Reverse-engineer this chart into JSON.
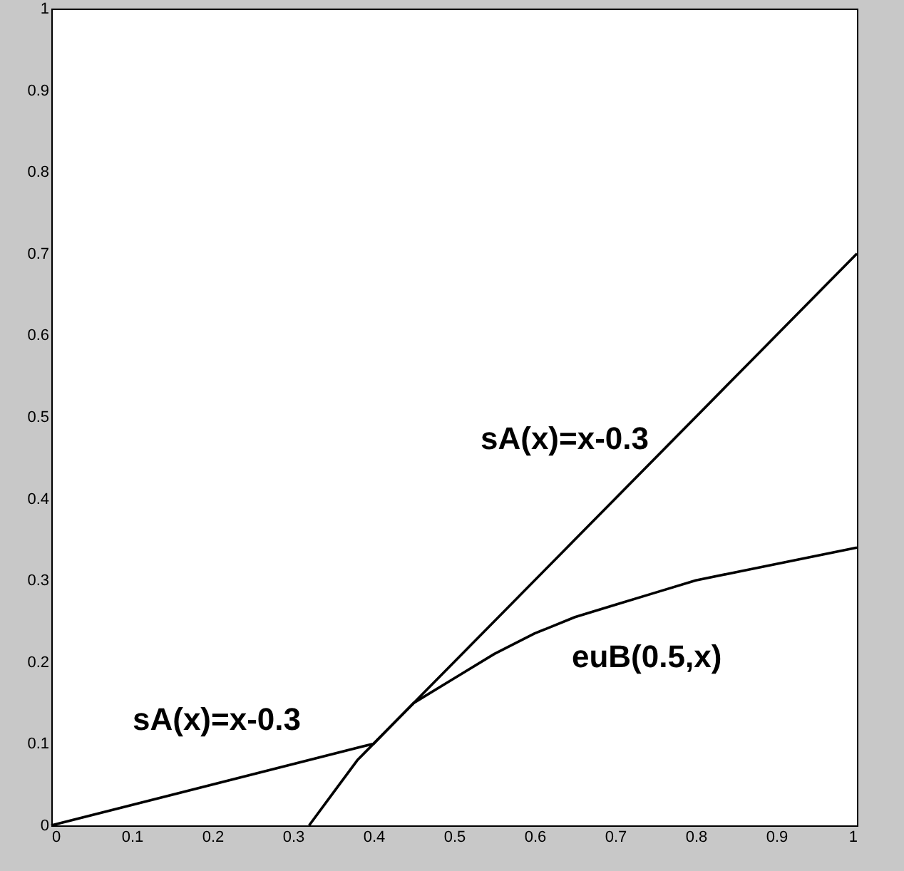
{
  "chart_data": {
    "type": "line",
    "xlim": [
      0,
      1
    ],
    "ylim": [
      0,
      1
    ],
    "xticks": [
      0,
      0.1,
      0.2,
      0.3,
      0.4,
      0.5,
      0.6,
      0.7,
      0.8,
      0.9,
      1
    ],
    "yticks": [
      0,
      0.1,
      0.2,
      0.3,
      0.4,
      0.5,
      0.6,
      0.7,
      0.8,
      0.9,
      1
    ],
    "grid": false,
    "marker": "none",
    "line_style": "solid",
    "series": [
      {
        "color": "#000000",
        "x": [
          0,
          0.4,
          1
        ],
        "values": [
          0,
          0.1,
          0.7
        ]
      },
      {
        "color": "#000000",
        "x": [
          0.32,
          0.35,
          0.38,
          0.4,
          0.45,
          0.5,
          0.55,
          0.6,
          0.65,
          0.7,
          0.75,
          0.8,
          0.85,
          0.9,
          0.95,
          1
        ],
        "values": [
          0,
          0.04,
          0.08,
          0.1,
          0.15,
          0.18,
          0.21,
          0.235,
          0.255,
          0.27,
          0.285,
          0.3,
          0.31,
          0.32,
          0.33,
          0.34
        ]
      }
    ],
    "annotations": [
      "sA(x)=x-0.3",
      "sA(x)=x-0.3",
      "euB(0.5,x)"
    ]
  }
}
